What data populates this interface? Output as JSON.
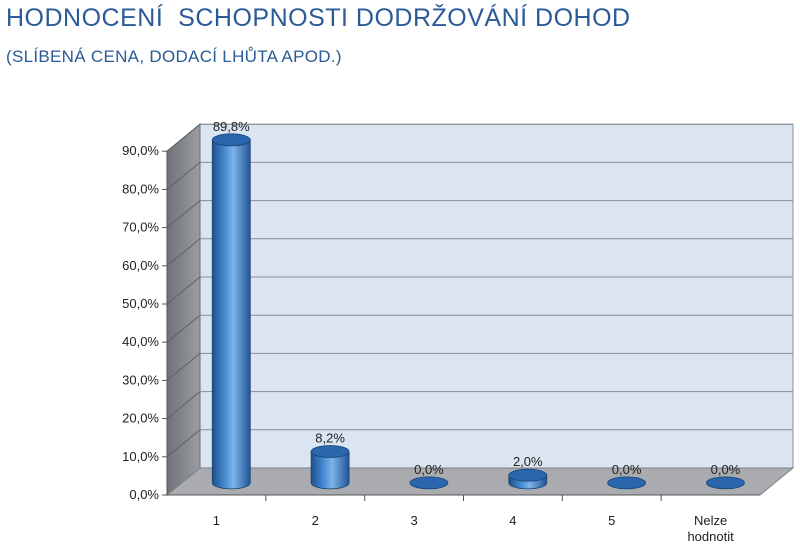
{
  "header": {
    "title": "HODNOCENÍ  SCHOPNOSTI DODRŽOVÁNÍ DOHOD",
    "subtitle": "(SLÍBENÁ CENA, DODACÍ LHŮTA APOD.)"
  },
  "chart_data": {
    "type": "bar",
    "style": "3d-cylinder",
    "title": "",
    "xlabel": "",
    "ylabel": "",
    "categories": [
      "1",
      "2",
      "3",
      "4",
      "5",
      "Nelze hodnotit"
    ],
    "values": [
      89.8,
      8.2,
      0.0,
      2.0,
      0.0,
      0.0
    ],
    "value_labels": [
      "89,8%",
      "8,2%",
      "0,0%",
      "2,0%",
      "0,0%",
      "0,0%"
    ],
    "ylim": [
      0,
      90
    ],
    "yticks": [
      0,
      10,
      20,
      30,
      40,
      50,
      60,
      70,
      80,
      90
    ],
    "ytick_labels": [
      "0,0%",
      "10,0%",
      "20,0%",
      "30,0%",
      "40,0%",
      "50,0%",
      "60,0%",
      "70,0%",
      "80,0%",
      "90,0%"
    ],
    "grid": true,
    "legend": "none",
    "colors": {
      "bar": "#3a7cc4",
      "bar_dark": "#1d4f8a",
      "bar_light": "#7fb3e8",
      "back_wall": "#dbe5f1",
      "side_wall": "#7f8288",
      "floor": "#a9abaf",
      "title": "#2a5a97"
    }
  }
}
